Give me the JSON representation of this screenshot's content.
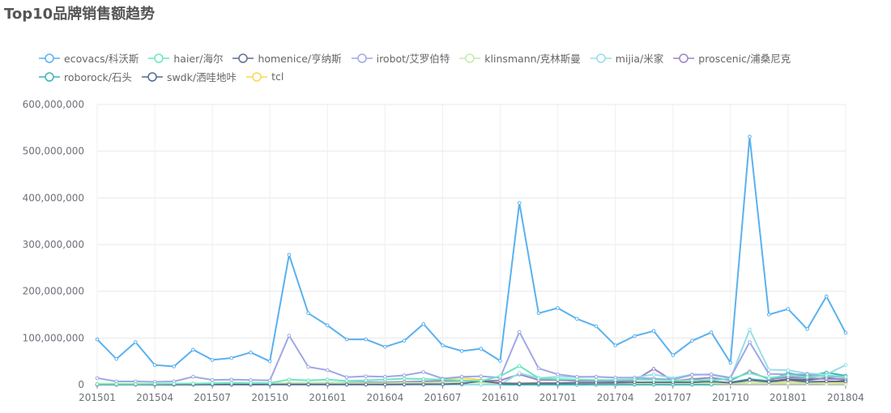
{
  "chart_data": {
    "type": "line",
    "title": "Top10品牌销售额趋势",
    "xlabel": "",
    "ylabel": "",
    "ylim": [
      0,
      600000000
    ],
    "yticks": [
      "0",
      "100,000,000",
      "200,000,000",
      "300,000,000",
      "400,000,000",
      "500,000,000",
      "600,000,000"
    ],
    "ytick_values": [
      0,
      100000000,
      200000000,
      300000000,
      400000000,
      500000000,
      600000000
    ],
    "grid": true,
    "legend_position": "top-left",
    "x": [
      "201501",
      "201502",
      "201503",
      "201504",
      "201505",
      "201506",
      "201507",
      "201508",
      "201509",
      "201510",
      "201511",
      "201512",
      "201601",
      "201602",
      "201603",
      "201604",
      "201605",
      "201606",
      "201607",
      "201608",
      "201609",
      "201610",
      "201611",
      "201612",
      "201701",
      "201702",
      "201703",
      "201704",
      "201705",
      "201706",
      "201707",
      "201708",
      "201709",
      "201710",
      "201711",
      "201712",
      "201801",
      "201802",
      "201803",
      "201804"
    ],
    "xtick_labels": [
      "201501",
      "201504",
      "201507",
      "201510",
      "201601",
      "201604",
      "201607",
      "201610",
      "201701",
      "201704",
      "201707",
      "201710",
      "201801",
      "201804"
    ],
    "series": [
      {
        "name": "ecovacs/科沃斯",
        "color": "#5ab1ef",
        "values": [
          97000000,
          55000000,
          91000000,
          42000000,
          39000000,
          75000000,
          53000000,
          57000000,
          69000000,
          50000000,
          278000000,
          153000000,
          127000000,
          97000000,
          97000000,
          81000000,
          94000000,
          130000000,
          84000000,
          72000000,
          77000000,
          51000000,
          389000000,
          153000000,
          164000000,
          141000000,
          125000000,
          84000000,
          104000000,
          115000000,
          63000000,
          94000000,
          112000000,
          47000000,
          531000000,
          150000000,
          162000000,
          119000000,
          189000000,
          111000000
        ]
      },
      {
        "name": "haier/海尔",
        "color": "#6be6c1",
        "values": [
          1000000,
          1000000,
          1000000,
          1500000,
          2000000,
          2500000,
          3000000,
          4000000,
          4000000,
          3500000,
          11000000,
          9000000,
          11000000,
          8000000,
          9000000,
          11000000,
          13000000,
          12000000,
          11000000,
          9000000,
          8000000,
          18000000,
          40000000,
          14000000,
          12000000,
          11000000,
          10000000,
          10000000,
          11000000,
          10000000,
          9000000,
          9000000,
          10000000,
          12000000,
          25000000,
          14000000,
          20000000,
          16000000,
          20000000,
          17000000
        ]
      },
      {
        "name": "homenice/亨纳斯",
        "color": "#626c91",
        "values": [
          0,
          0,
          0,
          0,
          0,
          0,
          200000,
          300000,
          200000,
          300000,
          500000,
          600000,
          600000,
          500000,
          500000,
          600000,
          700000,
          800000,
          1000000,
          2000000,
          8000000,
          3000000,
          2000000,
          3000000,
          3000000,
          4000000,
          4000000,
          4000000,
          5000000,
          5000000,
          5000000,
          5000000,
          7000000,
          4000000,
          10000000,
          6000000,
          10000000,
          6000000,
          7000000,
          7000000
        ]
      },
      {
        "name": "irobot/艾罗伯特",
        "color": "#a0a7e6",
        "values": [
          14000000,
          7000000,
          7000000,
          6000000,
          7000000,
          17000000,
          10000000,
          11000000,
          10000000,
          9000000,
          105000000,
          38000000,
          31000000,
          16000000,
          18000000,
          17000000,
          20000000,
          27000000,
          13000000,
          17000000,
          18000000,
          15000000,
          113000000,
          35000000,
          22000000,
          17000000,
          17000000,
          15000000,
          15000000,
          13000000,
          11000000,
          21000000,
          22000000,
          15000000,
          91000000,
          23000000,
          22000000,
          22000000,
          17000000,
          16000000
        ]
      },
      {
        "name": "klinsmann/克林斯曼",
        "color": "#c4ebad",
        "values": [
          2000000,
          2000000,
          2000000,
          2000000,
          2000000,
          2000000,
          3000000,
          3000000,
          3000000,
          2000000,
          4000000,
          4000000,
          4000000,
          3000000,
          3000000,
          3000000,
          4000000,
          4000000,
          5000000,
          5000000,
          4000000,
          3000000,
          4000000,
          4000000,
          4000000,
          4000000,
          3000000,
          3000000,
          3000000,
          3000000,
          3000000,
          3000000,
          3000000,
          2000000,
          4000000,
          3000000,
          3000000,
          3000000,
          2000000,
          2000000
        ]
      },
      {
        "name": "mijia/米家",
        "color": "#96dee8",
        "values": [
          0,
          0,
          0,
          0,
          0,
          0,
          0,
          0,
          0,
          0,
          0,
          0,
          0,
          0,
          0,
          0,
          0,
          0,
          0,
          0,
          0,
          0,
          25000000,
          14000000,
          17000000,
          16000000,
          17000000,
          15000000,
          15000000,
          22000000,
          14000000,
          22000000,
          21000000,
          13000000,
          118000000,
          32000000,
          31000000,
          24000000,
          22000000,
          42000000
        ]
      },
      {
        "name": "proscenic/浦桑尼克",
        "color": "#9d84c7",
        "values": [
          1000000,
          1000000,
          1000000,
          1000000,
          1000000,
          2000000,
          2000000,
          2000000,
          2000000,
          2000000,
          3000000,
          3000000,
          4000000,
          4000000,
          5000000,
          5000000,
          6000000,
          7000000,
          8000000,
          8000000,
          8000000,
          9000000,
          22000000,
          10000000,
          10000000,
          8000000,
          8000000,
          7000000,
          9000000,
          34000000,
          8000000,
          12000000,
          15000000,
          9000000,
          28000000,
          12000000,
          16000000,
          14000000,
          12000000,
          12000000
        ]
      },
      {
        "name": "roborock/石头",
        "color": "#3fb1b8",
        "values": [
          0,
          0,
          0,
          0,
          0,
          0,
          0,
          0,
          0,
          0,
          0,
          0,
          0,
          0,
          0,
          0,
          0,
          0,
          0,
          0,
          0,
          0,
          0,
          0,
          0,
          0,
          0,
          0,
          0,
          0,
          0,
          0,
          0,
          5000000,
          12000000,
          8000000,
          25000000,
          18000000,
          26000000,
          19000000
        ]
      },
      {
        "name": "swdk/洒哇地咔",
        "color": "#516b91",
        "values": [
          0,
          0,
          0,
          0,
          0,
          0,
          0,
          0,
          0,
          0,
          0,
          0,
          0,
          0,
          0,
          0,
          0,
          0,
          0,
          0,
          0,
          0,
          0,
          0,
          0,
          0,
          0,
          0,
          0,
          0,
          0,
          0,
          4000000,
          3000000,
          10000000,
          7000000,
          12000000,
          10000000,
          14000000,
          10000000
        ]
      },
      {
        "name": "tcl",
        "color": "#fad94d",
        "values": [
          0,
          0,
          0,
          0,
          0,
          0,
          1000000,
          1000000,
          1000000,
          1000000,
          2000000,
          2000000,
          2000000,
          2000000,
          2000000,
          3000000,
          3000000,
          3000000,
          12000000,
          15000000,
          10000000,
          4000000,
          3000000,
          3000000,
          3000000,
          3000000,
          3000000,
          3000000,
          3000000,
          3000000,
          3000000,
          13000000,
          6000000,
          4000000,
          5000000,
          4000000,
          5000000,
          4000000,
          4000000,
          4000000
        ]
      }
    ]
  }
}
